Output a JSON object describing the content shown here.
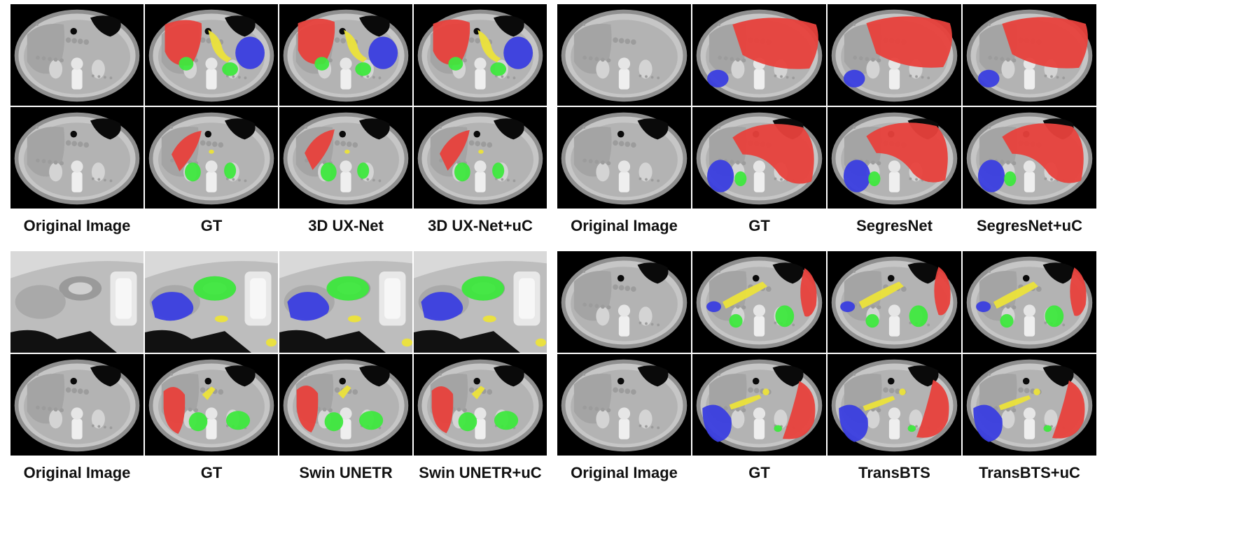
{
  "panels": [
    {
      "captions": [
        "Original Image",
        "GT",
        "3D UX-Net",
        "3D UX-Net+uC"
      ]
    },
    {
      "captions": [
        "Original Image",
        "GT",
        "SegresNet",
        "SegresNet+uC"
      ]
    },
    {
      "captions": [
        "Original Image",
        "GT",
        "Swin UNETR",
        "Swin UNETR+uC"
      ]
    },
    {
      "captions": [
        "Original Image",
        "GT",
        "TransBTS",
        "TransBTS+uC"
      ]
    }
  ],
  "label_colors": {
    "red": "#e8413c",
    "green": "#3ee83e",
    "blue": "#3a3ee0",
    "yellow": "#ece33a"
  }
}
